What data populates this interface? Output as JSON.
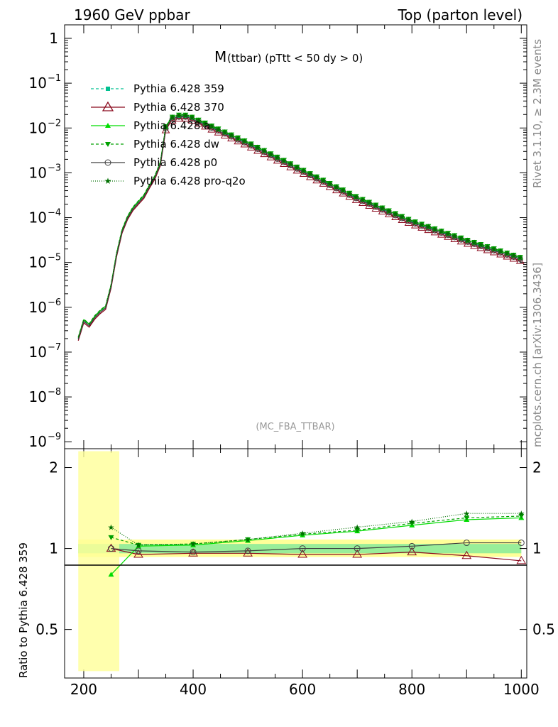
{
  "header": {
    "left": "1960 GeV ppbar",
    "right": "Top (parton level)"
  },
  "side_labels": {
    "rivet": "Rivet 3.1.10, ≥ 2.3M events",
    "mcplots": "mcplots.cern.ch [arXiv:1306.3436]"
  },
  "chart_data": [
    {
      "type": "line",
      "title_main": "M",
      "title_rest": " (ttbar) (pTtt < 50 dy > 0)",
      "watermark": "(MC_FBA_TTBAR)",
      "yscale": "log",
      "xlim": [
        165,
        1010
      ],
      "ylim": [
        7e-10,
        2
      ],
      "ytick_labels": [
        {
          "value": 1,
          "base": "1",
          "exp": ""
        },
        {
          "value": 0.1,
          "base": "10",
          "exp": "−1"
        },
        {
          "value": 0.01,
          "base": "10",
          "exp": "−2"
        },
        {
          "value": 0.001,
          "base": "10",
          "exp": "−3"
        },
        {
          "value": 0.0001,
          "base": "10",
          "exp": "−4"
        },
        {
          "value": 1e-05,
          "base": "10",
          "exp": "−5"
        },
        {
          "value": 1e-06,
          "base": "10",
          "exp": "−6"
        },
        {
          "value": 1e-07,
          "base": "10",
          "exp": "−7"
        },
        {
          "value": 1e-08,
          "base": "10",
          "exp": "−8"
        },
        {
          "value": 1e-09,
          "base": "10",
          "exp": "−9"
        }
      ],
      "legend_position": "top-left",
      "series": [
        {
          "name": "Pythia 6.428 359",
          "color": "#00c090",
          "dash": "4,3",
          "marker": "square"
        },
        {
          "name": "Pythia 6.428 370",
          "color": "#8b0a1e",
          "dash": "",
          "marker": "triangle-open"
        },
        {
          "name": "Pythia 6.428 a",
          "color": "#00dd00",
          "dash": "",
          "marker": "triangle"
        },
        {
          "name": "Pythia 6.428 dw",
          "color": "#00a000",
          "dash": "4,3",
          "marker": "triangle-down"
        },
        {
          "name": "Pythia 6.428 p0",
          "color": "#404040",
          "dash": "",
          "marker": "circle-open"
        },
        {
          "name": "Pythia 6.428 pro-q2o",
          "color": "#007000",
          "dash": "1,2",
          "marker": "star"
        }
      ],
      "points": [
        {
          "x": 190,
          "y": 2e-07
        },
        {
          "x": 200,
          "y": 5e-07
        },
        {
          "x": 210,
          "y": 4e-07
        },
        {
          "x": 220,
          "y": 6e-07
        },
        {
          "x": 230,
          "y": 8e-07
        },
        {
          "x": 240,
          "y": 1e-06
        },
        {
          "x": 250,
          "y": 3e-06
        },
        {
          "x": 260,
          "y": 1.5e-05
        },
        {
          "x": 270,
          "y": 5e-05
        },
        {
          "x": 280,
          "y": 0.0001
        },
        {
          "x": 290,
          "y": 0.00016
        },
        {
          "x": 300,
          "y": 0.00022
        },
        {
          "x": 310,
          "y": 0.0003
        },
        {
          "x": 320,
          "y": 0.0005
        },
        {
          "x": 330,
          "y": 0.0008
        },
        {
          "x": 340,
          "y": 0.0016
        },
        {
          "x": 350,
          "y": 0.01
        },
        {
          "x": 360,
          "y": 0.016
        },
        {
          "x": 370,
          "y": 0.018
        },
        {
          "x": 380,
          "y": 0.0185
        },
        {
          "x": 390,
          "y": 0.018
        },
        {
          "x": 400,
          "y": 0.016
        },
        {
          "x": 500,
          "y": 0.0045
        },
        {
          "x": 600,
          "y": 0.0011
        },
        {
          "x": 700,
          "y": 0.00027
        },
        {
          "x": 800,
          "y": 8e-05
        },
        {
          "x": 900,
          "y": 3e-05
        },
        {
          "x": 1000,
          "y": 1.2e-05
        }
      ]
    },
    {
      "type": "line",
      "ylabel": "Ratio to Pythia 6.428 359",
      "xlim": [
        165,
        1010
      ],
      "ylim": [
        0.33,
        2.35
      ],
      "yscale": "log",
      "xticks": [
        200,
        400,
        600,
        800,
        1000
      ],
      "yticks": [
        0.5,
        1,
        2
      ],
      "reference": 1,
      "ratios": {
        "Pythia 6.428 370": [
          {
            "x": 250,
            "y": 1.0
          },
          {
            "x": 300,
            "y": 0.95
          },
          {
            "x": 400,
            "y": 0.96
          },
          {
            "x": 500,
            "y": 0.96
          },
          {
            "x": 600,
            "y": 0.95
          },
          {
            "x": 700,
            "y": 0.95
          },
          {
            "x": 800,
            "y": 0.97
          },
          {
            "x": 900,
            "y": 0.94
          },
          {
            "x": 1000,
            "y": 0.9
          }
        ],
        "Pythia 6.428 a": [
          {
            "x": 250,
            "y": 0.8
          },
          {
            "x": 300,
            "y": 1.02
          },
          {
            "x": 400,
            "y": 1.03
          },
          {
            "x": 500,
            "y": 1.07
          },
          {
            "x": 600,
            "y": 1.12
          },
          {
            "x": 700,
            "y": 1.16
          },
          {
            "x": 800,
            "y": 1.22
          },
          {
            "x": 900,
            "y": 1.28
          },
          {
            "x": 1000,
            "y": 1.3
          }
        ],
        "Pythia 6.428 dw": [
          {
            "x": 250,
            "y": 1.1
          },
          {
            "x": 300,
            "y": 1.03
          },
          {
            "x": 400,
            "y": 1.04
          },
          {
            "x": 500,
            "y": 1.08
          },
          {
            "x": 600,
            "y": 1.13
          },
          {
            "x": 700,
            "y": 1.17
          },
          {
            "x": 800,
            "y": 1.24
          },
          {
            "x": 900,
            "y": 1.3
          },
          {
            "x": 1000,
            "y": 1.32
          }
        ],
        "Pythia 6.428 p0": [
          {
            "x": 250,
            "y": 1.0
          },
          {
            "x": 300,
            "y": 0.98
          },
          {
            "x": 400,
            "y": 0.97
          },
          {
            "x": 500,
            "y": 0.98
          },
          {
            "x": 600,
            "y": 1.0
          },
          {
            "x": 700,
            "y": 1.0
          },
          {
            "x": 800,
            "y": 1.02
          },
          {
            "x": 900,
            "y": 1.05
          },
          {
            "x": 1000,
            "y": 1.05
          }
        ],
        "Pythia 6.428 pro-q2o": [
          {
            "x": 250,
            "y": 1.2
          },
          {
            "x": 300,
            "y": 1.03
          },
          {
            "x": 400,
            "y": 1.04
          },
          {
            "x": 500,
            "y": 1.08
          },
          {
            "x": 600,
            "y": 1.14
          },
          {
            "x": 700,
            "y": 1.2
          },
          {
            "x": 800,
            "y": 1.26
          },
          {
            "x": 900,
            "y": 1.35
          },
          {
            "x": 1000,
            "y": 1.35
          }
        ]
      }
    }
  ]
}
